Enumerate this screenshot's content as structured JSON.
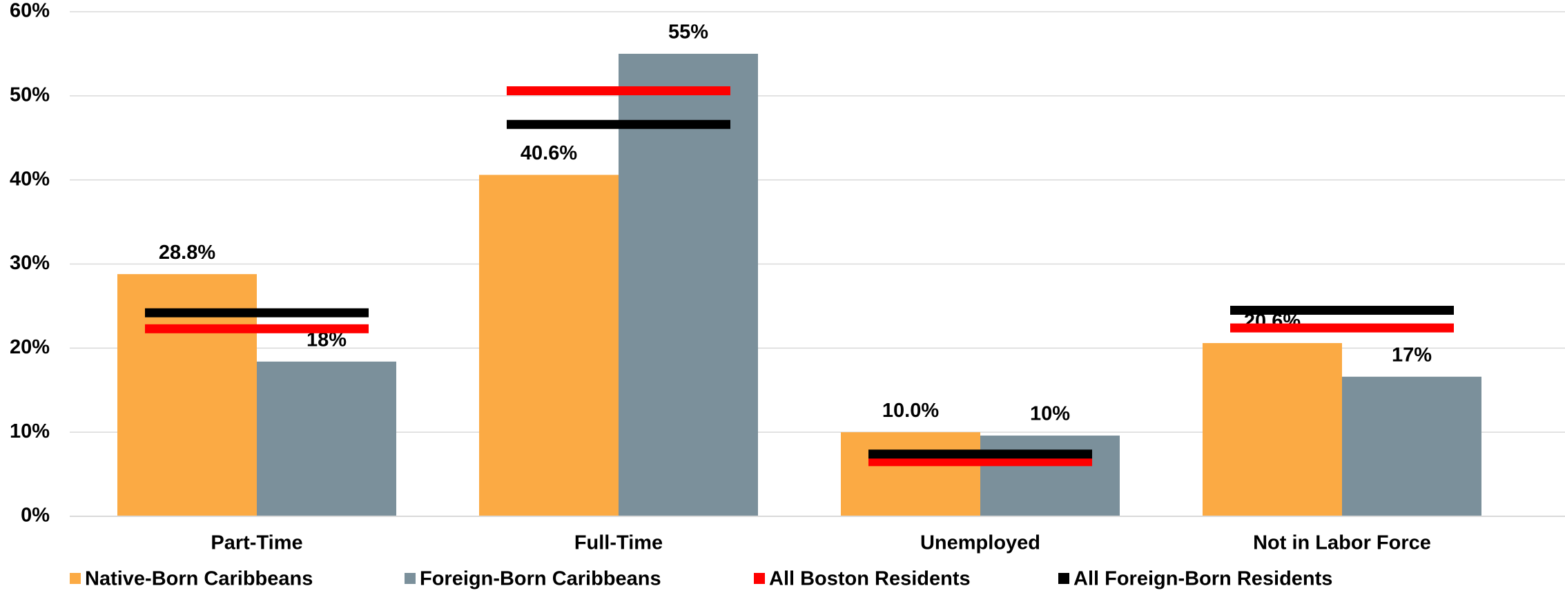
{
  "chart_data": {
    "type": "bar",
    "categories": [
      "Part-Time",
      "Full-Time",
      "Unemployed",
      "Not in Labor Force"
    ],
    "series": [
      {
        "name": "Native-Born Caribbeans",
        "type": "bar",
        "color": "#fbaa44",
        "values": [
          28.8,
          40.6,
          10.0,
          20.6
        ],
        "value_labels": [
          "28.8%",
          "40.6%",
          "10.0%",
          "20.6%"
        ]
      },
      {
        "name": "Foreign-Born Caribbeans",
        "type": "bar",
        "color": "#7b909b",
        "values": [
          18.4,
          55,
          9.6,
          16.6
        ],
        "value_labels": [
          "18%",
          "55%",
          "10%",
          "17%"
        ]
      },
      {
        "name": "All Boston Residents",
        "type": "marker",
        "color": "#ff0000",
        "values": [
          22.3,
          50.6,
          6.5,
          22.4
        ]
      },
      {
        "name": "All Foreign-Born Residents",
        "type": "marker",
        "color": "#000000",
        "values": [
          24.2,
          46.6,
          7.4,
          24.5
        ]
      }
    ],
    "ylim": [
      0,
      60
    ],
    "yticks": [
      {
        "value": 0,
        "label": "0%"
      },
      {
        "value": 10,
        "label": "10%"
      },
      {
        "value": 20,
        "label": "20%"
      },
      {
        "value": 30,
        "label": "30%"
      },
      {
        "value": 40,
        "label": "40%"
      },
      {
        "value": 50,
        "label": "50%"
      },
      {
        "value": 60,
        "label": "60%"
      }
    ],
    "grid": true
  }
}
